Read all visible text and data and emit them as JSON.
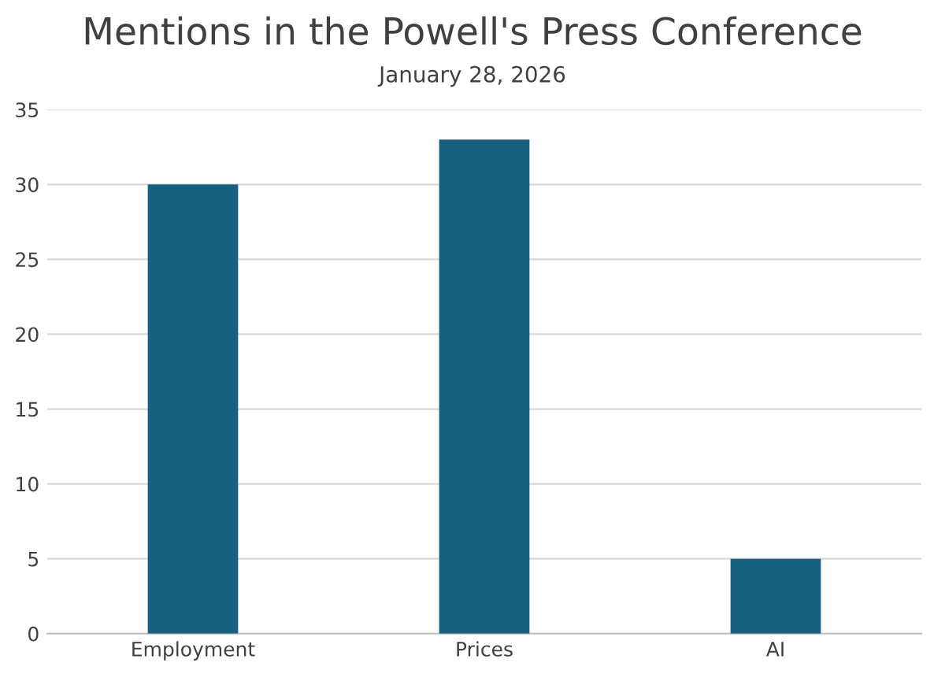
{
  "chart_data": {
    "type": "bar",
    "title": "Mentions in the Powell's Press Conference",
    "subtitle": "January 28, 2026",
    "categories": [
      "Employment",
      "Prices",
      "AI"
    ],
    "values": [
      30,
      33,
      5
    ],
    "color": "#17607f",
    "ylim": [
      0,
      35
    ],
    "yticks": [
      0,
      5,
      10,
      15,
      20,
      25,
      30,
      35
    ],
    "grid": "y",
    "legend": false
  }
}
